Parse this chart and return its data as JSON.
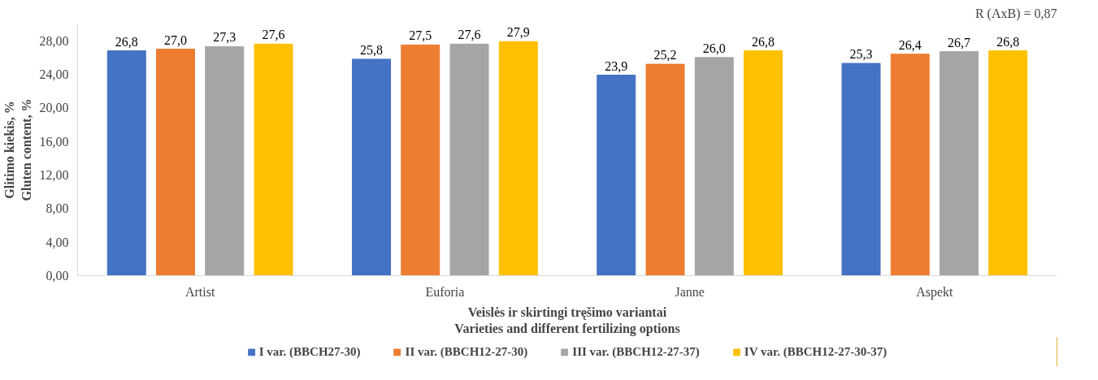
{
  "chart_data": {
    "type": "bar",
    "categories": [
      "Artist",
      "Euforia",
      "Janne",
      "Aspekt"
    ],
    "series": [
      {
        "name": "I var. (BBCH27-30)",
        "color": "#4472c4",
        "values": [
          26.8,
          25.8,
          23.9,
          25.3
        ],
        "value_labels": [
          "26,8",
          "25,8",
          "23,9",
          "25,3"
        ]
      },
      {
        "name": "II var. (BBCH12-27-30)",
        "color": "#ed7d31",
        "values": [
          27.0,
          27.5,
          25.2,
          26.4
        ],
        "value_labels": [
          "27,0",
          "27,5",
          "25,2",
          "26,4"
        ]
      },
      {
        "name": "III var. (BBCH12-27-37)",
        "color": "#a5a5a5",
        "values": [
          27.3,
          27.6,
          26.0,
          26.7
        ],
        "value_labels": [
          "27,3",
          "27,6",
          "26,0",
          "26,7"
        ]
      },
      {
        "name": "IV var. (BBCH12-27-30-37)",
        "color": "#ffc000",
        "values": [
          27.6,
          27.9,
          26.8,
          26.8
        ],
        "value_labels": [
          "27,6",
          "27,9",
          "26,8",
          "26,8"
        ]
      }
    ],
    "ylim": [
      0,
      30
    ],
    "yticks": [
      {
        "value": 0,
        "label": "0,00"
      },
      {
        "value": 4,
        "label": "4,00"
      },
      {
        "value": 8,
        "label": "8,00"
      },
      {
        "value": 12,
        "label": "12,00"
      },
      {
        "value": 16,
        "label": "16,00"
      },
      {
        "value": 20,
        "label": "20,00"
      },
      {
        "value": 24,
        "label": "24,00"
      },
      {
        "value": 28,
        "label": "28,00"
      }
    ],
    "xlabel": "Veislės ir skirtingi tręšimo variantai\nVarieties and different fertilizing options",
    "ylabel": "Glitimo kiekis, %\nGluten content, %",
    "annotations": [
      "R (AxB) = 0,87"
    ],
    "legend": "bottom"
  }
}
